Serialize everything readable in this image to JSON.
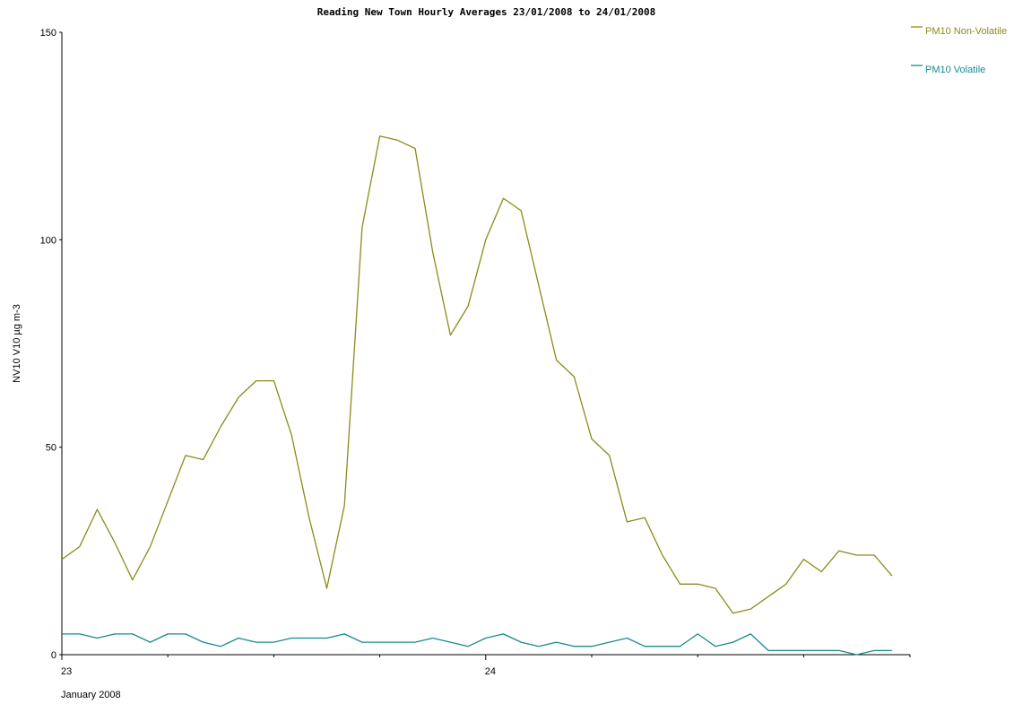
{
  "chart_data": {
    "type": "line",
    "title": "Reading New Town Hourly Averages 23/01/2008 to 24/01/2008",
    "ylabel": "NV10 V10 µg m-3",
    "xlabel": "",
    "ylim": [
      0,
      150
    ],
    "yticks": [
      0,
      50,
      100,
      150
    ],
    "x_tick_labels": [
      {
        "hour": 0,
        "label": "23"
      },
      {
        "hour": 24,
        "label": "24"
      }
    ],
    "x_sublabel": "January 2008",
    "x_minor_tick_hours": [
      6,
      12,
      18,
      30,
      36,
      42
    ],
    "grid": false,
    "legend_position": "top-right",
    "series": [
      {
        "name": "PM10 Non-Volatile",
        "color": "#8b8b1a",
        "x": [
          0,
          1,
          2,
          3,
          4,
          5,
          6,
          7,
          8,
          9,
          10,
          11,
          12,
          13,
          14,
          15,
          16,
          17,
          18,
          19,
          20,
          21,
          22,
          23,
          24,
          25,
          26,
          27,
          28,
          29,
          30,
          31,
          32,
          33,
          34,
          35,
          36,
          37,
          38,
          39,
          40,
          41,
          42,
          43,
          44,
          45,
          46,
          47
        ],
        "values": [
          23,
          26,
          35,
          27,
          18,
          26,
          37,
          48,
          47,
          55,
          62,
          66,
          66,
          53,
          33,
          16,
          36,
          103,
          125,
          124,
          122,
          97,
          77,
          84,
          100,
          110,
          107,
          89,
          71,
          67,
          52,
          48,
          32,
          33,
          24,
          17,
          17,
          16,
          10,
          11,
          14,
          17,
          23,
          20,
          25,
          24,
          24,
          19
        ]
      },
      {
        "name": "PM10 Volatile",
        "color": "#1a8b8b",
        "x": [
          0,
          1,
          2,
          3,
          4,
          5,
          6,
          7,
          8,
          9,
          10,
          11,
          12,
          13,
          14,
          15,
          16,
          17,
          18,
          19,
          20,
          21,
          22,
          23,
          24,
          25,
          26,
          27,
          28,
          29,
          30,
          31,
          32,
          33,
          34,
          35,
          36,
          37,
          38,
          39,
          40,
          41,
          42,
          43,
          44,
          45,
          46,
          47
        ],
        "values": [
          5,
          5,
          4,
          5,
          5,
          3,
          5,
          5,
          3,
          2,
          4,
          3,
          3,
          4,
          4,
          4,
          5,
          3,
          3,
          3,
          3,
          4,
          3,
          2,
          4,
          5,
          3,
          2,
          3,
          2,
          2,
          3,
          4,
          2,
          2,
          2,
          5,
          2,
          3,
          5,
          1,
          1,
          1,
          1,
          1,
          0,
          1,
          1
        ]
      }
    ]
  }
}
